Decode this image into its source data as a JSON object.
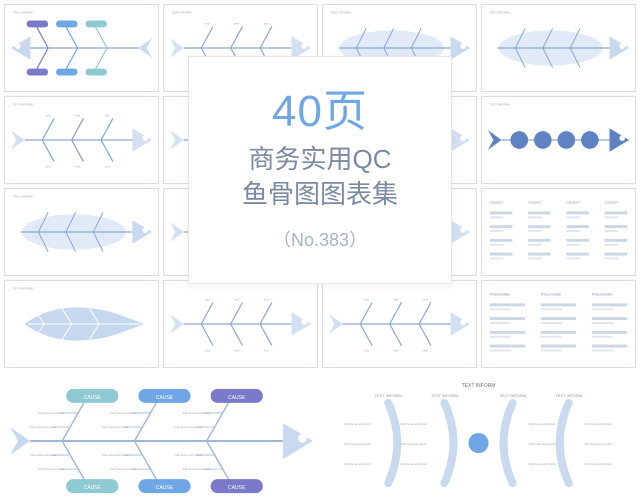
{
  "title_card": {
    "line1_number": "40",
    "line1_unit": "页",
    "line2": "商务实用QC",
    "line3": "鱼骨图图表集",
    "sub": "（No.383）",
    "number_color": "#6fa7e6",
    "text_color": "#7a8aa0",
    "sub_color": "#a8b4c8",
    "card_bg": "#ffffff",
    "card_border": "#e6e6e6"
  },
  "palette": {
    "fish_light": "#d2e0f2",
    "fish_mid": "#b6cdea",
    "spine": "#8aa8d0",
    "accent_purple": "#7b79c9",
    "accent_blue": "#6fa7e6",
    "accent_teal": "#8ec9d4",
    "accent_violet": "#9a8ed0",
    "grid_border": "#d8dde6",
    "label_gray": "#9aa3b8",
    "bg": "#ffffff"
  },
  "thumbnails": [
    {
      "id": 1,
      "type": "fishbone",
      "style": "pill-branches",
      "direction": "left",
      "head_color": "#c9d9f0",
      "branch_colors": [
        "#7b79c9",
        "#6fa7e6",
        "#8ec9d4"
      ],
      "header_label": "TEXT INFORM"
    },
    {
      "id": 2,
      "type": "fishbone",
      "style": "thin-branches",
      "direction": "right",
      "head_color": "#d2e0f2",
      "branch_colors": [
        "#8aa8d0"
      ],
      "header_label": "TEXT INFORM"
    },
    {
      "id": 3,
      "type": "fishbone",
      "style": "silhouette-right",
      "direction": "right",
      "head_color": "#c9d9f0",
      "branch_colors": [
        "#8aa8d0"
      ],
      "header_label": "TEXT INFORM"
    },
    {
      "id": 4,
      "type": "fishbone",
      "style": "silhouette-right",
      "direction": "right",
      "head_color": "#c9d9f0",
      "branch_colors": [
        "#8aa8d0"
      ],
      "header_label": "TEXT INFORM"
    },
    {
      "id": 5,
      "type": "fishbone",
      "style": "thin-branches",
      "direction": "right",
      "head_color": "#d2e0f2",
      "branch_colors": [
        "#6fa7e6",
        "#9a8ed0"
      ],
      "header_label": "TEXT INFORM"
    },
    {
      "id": 6,
      "type": "fishbone",
      "style": "thin-branches",
      "direction": "right",
      "head_color": "#d2e0f2",
      "branch_colors": [
        "#8aa8d0"
      ],
      "header_label": ""
    },
    {
      "id": 7,
      "type": "fishbone",
      "style": "thin-branches",
      "direction": "right",
      "head_color": "#d2e0f2",
      "branch_colors": [
        "#8aa8d0"
      ],
      "header_label": ""
    },
    {
      "id": 8,
      "type": "fishbone",
      "style": "circle-spine",
      "direction": "right",
      "head_color": "#5e82c4",
      "branch_colors": [
        "#5e82c4"
      ],
      "header_label": "TEXT INFORM"
    },
    {
      "id": 9,
      "type": "fishbone",
      "style": "silhouette-right",
      "direction": "right",
      "head_color": "#c9d9f0",
      "branch_colors": [
        "#8aa8d0"
      ],
      "header_label": "TEXT INFORM"
    },
    {
      "id": 10,
      "type": "fishbone",
      "style": "thin-branches",
      "direction": "right",
      "head_color": "#d2e0f2",
      "branch_colors": [
        "#8aa8d0"
      ],
      "header_label": ""
    },
    {
      "id": 11,
      "type": "fishbone",
      "style": "thin-branches",
      "direction": "right",
      "head_color": "#d2e0f2",
      "branch_colors": [
        "#8aa8d0"
      ],
      "header_label": ""
    },
    {
      "id": 12,
      "type": "text-columns",
      "columns": 4,
      "col_label": "Cause?",
      "item_label": "Fish bone text block"
    },
    {
      "id": 13,
      "type": "fishbone",
      "style": "fat-fish",
      "direction": "right",
      "head_color": "#c6d8ef",
      "branch_colors": [
        "#8aa8d0"
      ],
      "header_label": "TEXT INFORM"
    },
    {
      "id": 14,
      "type": "fishbone",
      "style": "thin-branches",
      "direction": "right",
      "head_color": "#d2e0f2",
      "branch_colors": [
        "#8aa8d0"
      ],
      "header_label": ""
    },
    {
      "id": 15,
      "type": "fishbone",
      "style": "thin-branches",
      "direction": "right",
      "head_color": "#d2e0f2",
      "branch_colors": [
        "#8aa8d0"
      ],
      "header_label": ""
    },
    {
      "id": 16,
      "type": "text-columns",
      "columns": 3,
      "col_label": "Placeholder",
      "item_label": "Fish bone text block"
    }
  ],
  "big_thumbnails": [
    {
      "id": "A",
      "type": "fishbone-pills",
      "direction": "right",
      "head_color": "#c9d9f0",
      "spine_color": "#9fb8da",
      "pill_colors_top": [
        "#8ec9d4",
        "#6fa7e6",
        "#7b79c9"
      ],
      "pill_colors_bot": [
        "#8ec9d4",
        "#6fa7e6",
        "#7b79c9"
      ],
      "pill_label": "CAUSE",
      "item_label": "Fish bone text block"
    },
    {
      "id": "B",
      "type": "fishbone-curved",
      "direction": "center",
      "header_top": "TEXT INFORM",
      "headers": [
        "TEXT INFORM",
        "TEXT INFORM",
        "TEXT INFORM",
        "TEXT INFORM"
      ],
      "arc_color": "#c9d9f0",
      "hub_color": "#6fa7e6",
      "item_label": "Fish bone text block"
    }
  ]
}
